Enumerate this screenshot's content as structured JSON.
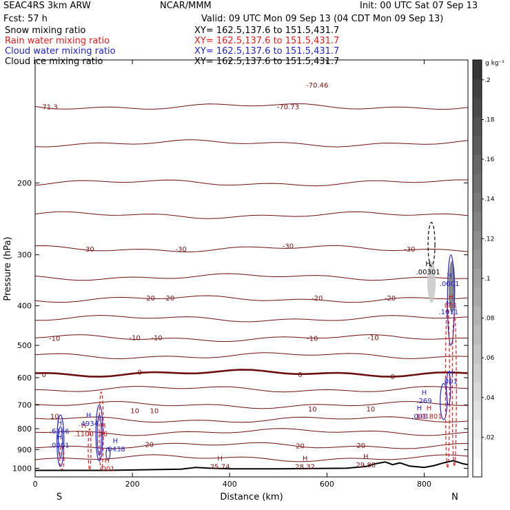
{
  "header": {
    "model": "SEAC4RS  3km ARW",
    "org": "NCAR/MMM",
    "init": "Init: 00 UTC Sat 07 Sep 13",
    "fcst": "Fcst:    57 h",
    "valid": "Valid: 09 UTC Mon 09 Sep 13 (04 CDT Mon 09 Sep 13)"
  },
  "fields": [
    {
      "name": "Snow mixing ratio",
      "xy": "XY= 162.5,137.6 to 151.5,431.7",
      "color": "#000000"
    },
    {
      "name": "Rain water mixing ratio",
      "xy": "XY= 162.5,137.6 to 151.5,431.7",
      "color": "#e41a1c"
    },
    {
      "name": "Cloud water mixing ratio",
      "xy": "XY= 162.5,137.6 to 151.5,431.7",
      "color": "#2222cc"
    },
    {
      "name": "Cloud ice mixing ratio",
      "xy": "XY= 162.5,137.6 to 151.5,431.7",
      "color": "#000000"
    }
  ],
  "chart_data": {
    "type": "cross-section",
    "xlabel": "Distance (km)",
    "ylabel": "Pressure (hPa)",
    "xlim": [
      0,
      890
    ],
    "ylim": [
      1050,
      100
    ],
    "xticks": [
      0,
      200,
      400,
      600,
      800
    ],
    "yticks": [
      200,
      300,
      400,
      500,
      600,
      700,
      800,
      900,
      1000
    ],
    "x_end_labels": [
      "S",
      "N"
    ],
    "colorbar": {
      "unit": "g kg⁻¹",
      "ticks": [
        ".02",
        ".04",
        ".06",
        ".08",
        ".1",
        ".12",
        ".14",
        ".16",
        ".18",
        ".2"
      ]
    },
    "temperature_contour_labels": [
      {
        "x": 110,
        "p": 290,
        "label": "-30"
      },
      {
        "x": 300,
        "p": 290,
        "label": "-30"
      },
      {
        "x": 520,
        "p": 285,
        "label": "-30"
      },
      {
        "x": 770,
        "p": 290,
        "label": "-30"
      },
      {
        "x": 235,
        "p": 382,
        "label": "-20"
      },
      {
        "x": 275,
        "p": 382,
        "label": "-20"
      },
      {
        "x": 580,
        "p": 382,
        "label": "-20"
      },
      {
        "x": 730,
        "p": 382,
        "label": "-20"
      },
      {
        "x": 40,
        "p": 480,
        "label": "-10"
      },
      {
        "x": 205,
        "p": 478,
        "label": "-10"
      },
      {
        "x": 250,
        "p": 478,
        "label": "-10"
      },
      {
        "x": 570,
        "p": 480,
        "label": "-10"
      },
      {
        "x": 695,
        "p": 478,
        "label": "-10"
      },
      {
        "x": 18,
        "p": 588,
        "label": "0"
      },
      {
        "x": 215,
        "p": 580,
        "label": "0"
      },
      {
        "x": 545,
        "p": 588,
        "label": "0"
      },
      {
        "x": 735,
        "p": 595,
        "label": "0"
      },
      {
        "x": 40,
        "p": 745,
        "label": "10"
      },
      {
        "x": 205,
        "p": 722,
        "label": "10"
      },
      {
        "x": 245,
        "p": 722,
        "label": "10"
      },
      {
        "x": 570,
        "p": 715,
        "label": "10"
      },
      {
        "x": 690,
        "p": 715,
        "label": "10"
      },
      {
        "x": 235,
        "p": 873,
        "label": "20"
      },
      {
        "x": 545,
        "p": 880,
        "label": "20"
      },
      {
        "x": 670,
        "p": 878,
        "label": "20"
      }
    ],
    "max_labels": [
      {
        "x": 28,
        "p": 130,
        "label": "-71.3"
      },
      {
        "x": 580,
        "p": 115,
        "label": "-70.46"
      },
      {
        "x": 520,
        "p": 130,
        "label": "-70.73"
      }
    ],
    "high_labels": [
      {
        "x": 380,
        "p": 988,
        "label": "25.74",
        "color": "#7a1010"
      },
      {
        "x": 555,
        "p": 988,
        "label": "28.32",
        "color": "#7a1010"
      },
      {
        "x": 680,
        "p": 980,
        "label": "29.88",
        "color": "#7a1010"
      },
      {
        "x": 50,
        "p": 810,
        "label": ".6166",
        "color": "#2222cc"
      },
      {
        "x": 50,
        "p": 876,
        "label": ".0001",
        "color": "#2222cc"
      },
      {
        "x": 100,
        "p": 822,
        "label": ".1100",
        "color": "#c21a1a"
      },
      {
        "x": 140,
        "p": 822,
        "label": "96",
        "color": "#c21a1a"
      },
      {
        "x": 110,
        "p": 775,
        "label": ".4934",
        "color": "#2222cc"
      },
      {
        "x": 165,
        "p": 895,
        "label": ".0438",
        "color": "#2222cc"
      },
      {
        "x": 148,
        "p": 1000,
        "label": ".001",
        "color": "#c21a1a"
      },
      {
        "x": 808,
        "p": 330,
        "label": ".00301",
        "color": "#000000"
      },
      {
        "x": 852,
        "p": 352,
        "label": ".0001",
        "color": "#2222cc"
      },
      {
        "x": 850,
        "p": 413,
        "label": ".1011",
        "color": "#2222cc"
      },
      {
        "x": 855,
        "p": 398,
        "label": "001",
        "color": "#c21a1a"
      },
      {
        "x": 855,
        "p": 610,
        "label": "001",
        "color": "#2222cc"
      },
      {
        "x": 800,
        "p": 682,
        "label": ".269",
        "color": "#2222cc"
      },
      {
        "x": 790,
        "p": 745,
        "label": ".001",
        "color": "#2222cc"
      },
      {
        "x": 810,
        "p": 745,
        "label": "101801",
        "color": "#c21a1a"
      }
    ]
  }
}
